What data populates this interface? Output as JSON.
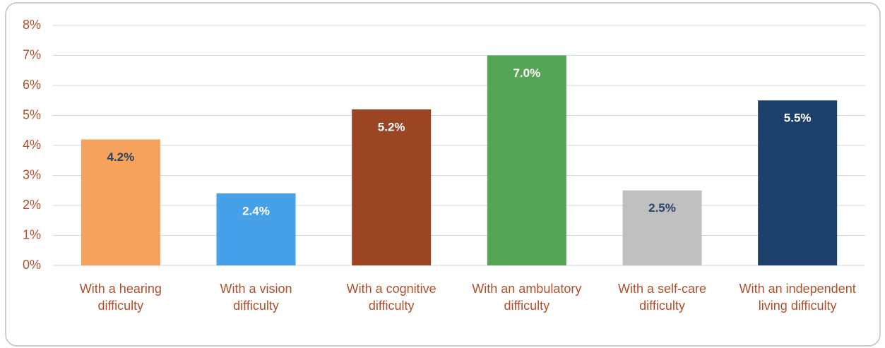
{
  "chart_data": {
    "type": "bar",
    "categories": [
      "With a hearing difficulty",
      "With a vision difficulty",
      "With a cognitive difficulty",
      "With an ambulatory difficulty",
      "With a self-care difficulty",
      "With an independent living difficulty"
    ],
    "values": [
      4.2,
      2.4,
      5.2,
      7.0,
      2.5,
      5.5
    ],
    "value_labels": [
      "4.2%",
      "2.4%",
      "5.2%",
      "7.0%",
      "2.5%",
      "5.5%"
    ],
    "colors": [
      "#f5a35c",
      "#46a1e8",
      "#9c4525",
      "#56a456",
      "#bfbfbf",
      "#1d406b"
    ],
    "value_label_colors": [
      "#2a4466",
      "#ffffff",
      "#ffffff",
      "#ffffff",
      "#2a4466",
      "#ffffff"
    ],
    "ylim": [
      0,
      8
    ],
    "yticks": [
      {
        "value": 0,
        "label": "0%"
      },
      {
        "value": 1,
        "label": "1%"
      },
      {
        "value": 2,
        "label": "2%"
      },
      {
        "value": 3,
        "label": "3%"
      },
      {
        "value": 4,
        "label": "4%"
      },
      {
        "value": 5,
        "label": "5%"
      },
      {
        "value": 6,
        "label": "6%"
      },
      {
        "value": 7,
        "label": "7%"
      },
      {
        "value": 8,
        "label": "8%"
      }
    ],
    "grid": true
  }
}
